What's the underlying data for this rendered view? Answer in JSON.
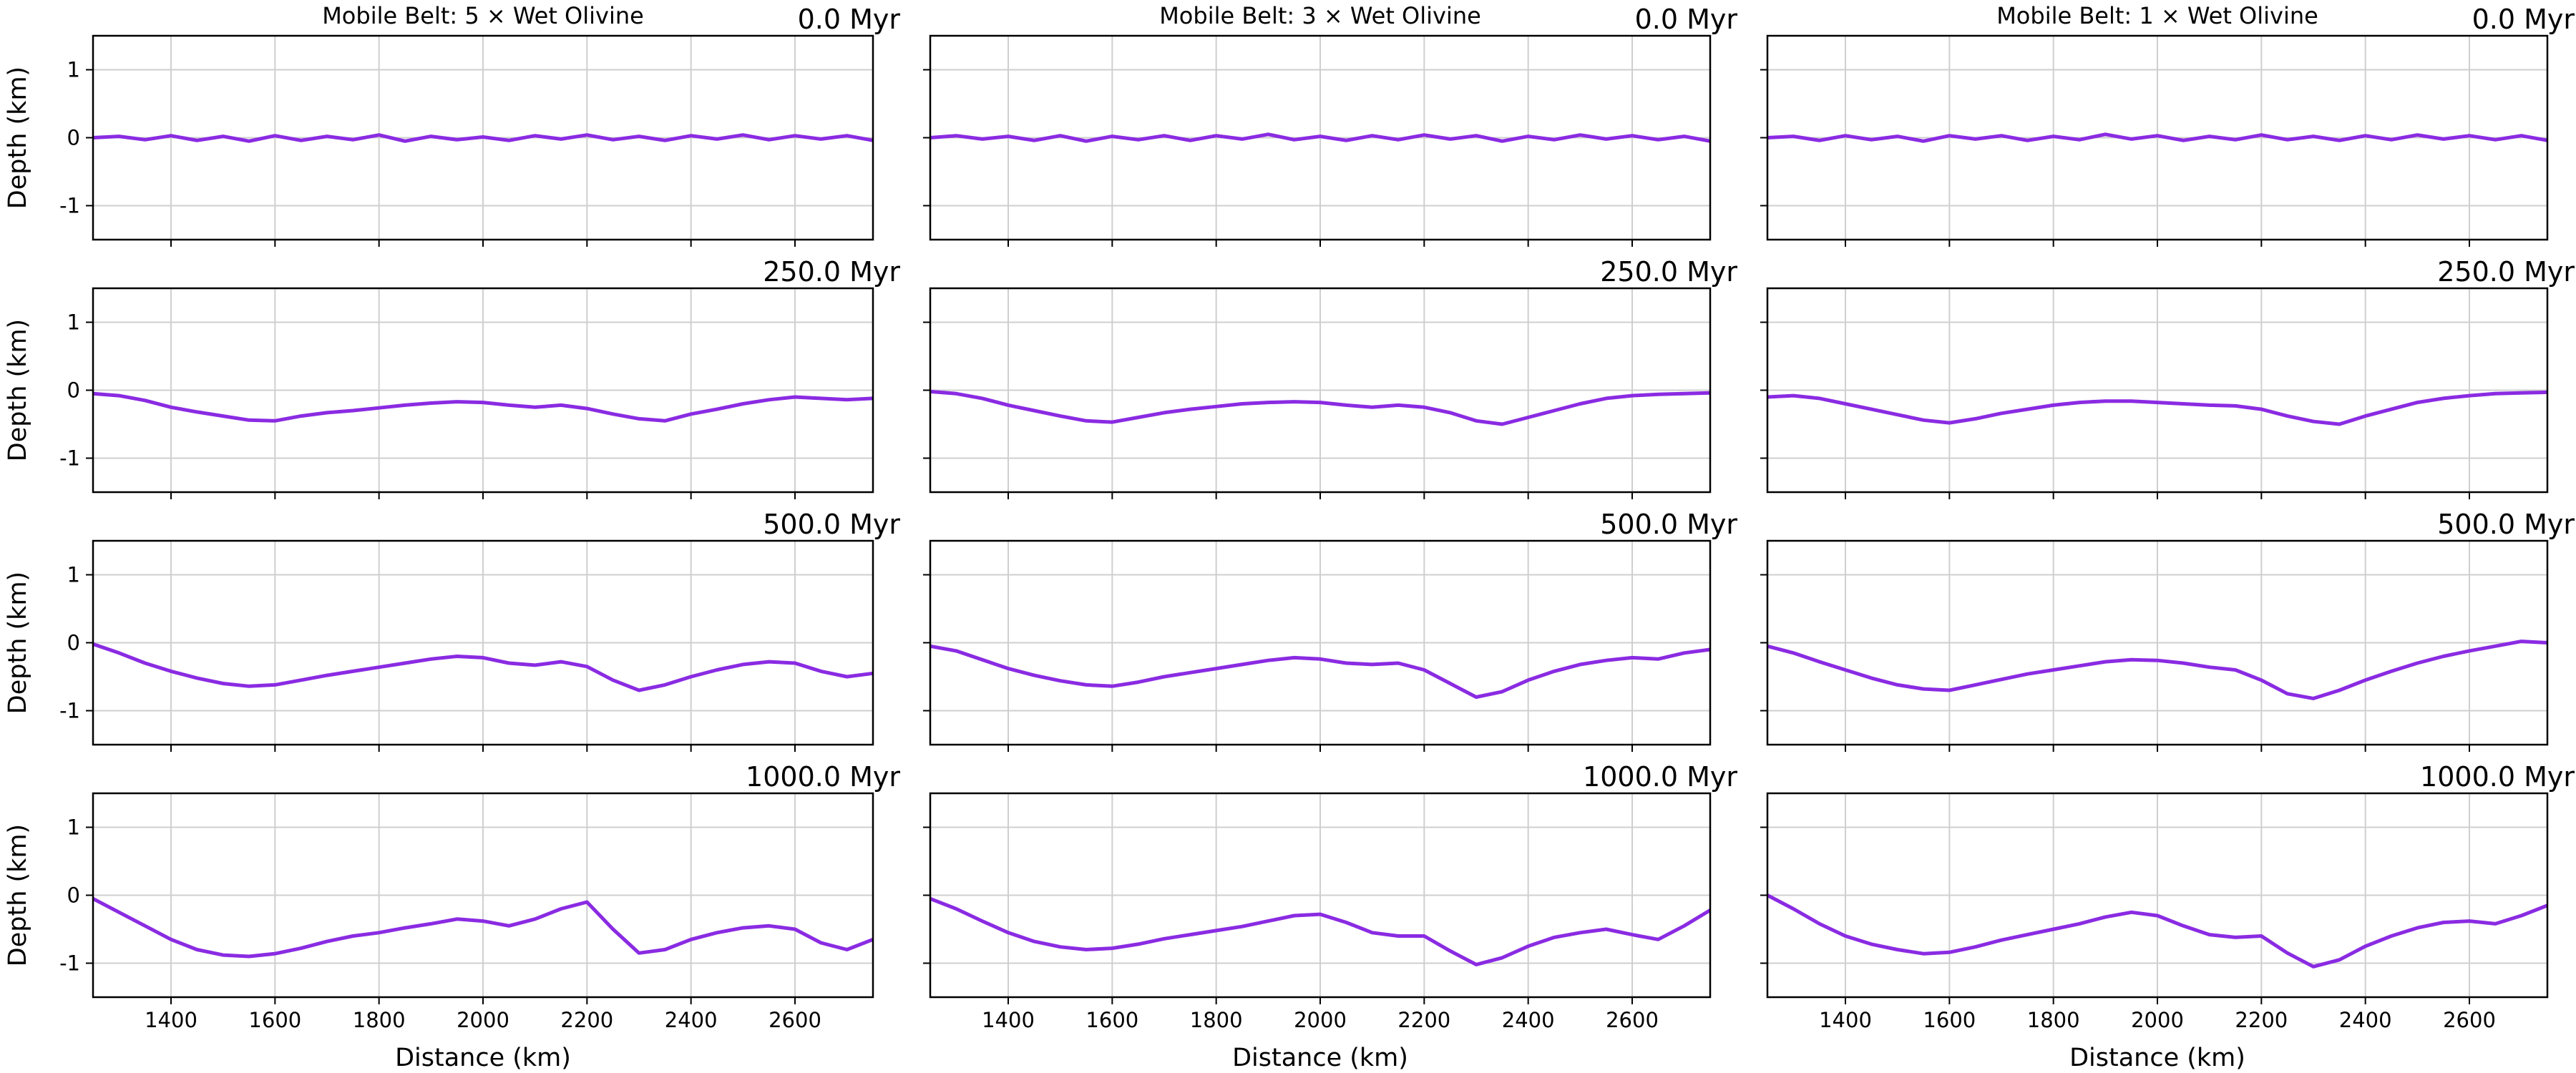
{
  "figure": {
    "x_axis_label": "Distance (km)",
    "y_axis_label": "Depth (km)",
    "x_ticks": [
      1400,
      1600,
      1800,
      2000,
      2200,
      2400,
      2600
    ],
    "y_ticks": [
      1,
      0,
      -1
    ],
    "xlim": [
      1250,
      2750
    ],
    "ylim": [
      -1.5,
      1.5
    ],
    "line_color": "#8a2be2",
    "grid": true,
    "columns": [
      {
        "title": "Mobile Belt: 5 × Wet Olivine"
      },
      {
        "title": "Mobile Belt: 3 × Wet Olivine"
      },
      {
        "title": "Mobile Belt: 1 × Wet Olivine"
      }
    ],
    "rows": [
      {
        "time_label": "0.0 Myr"
      },
      {
        "time_label": "250.0 Myr"
      },
      {
        "time_label": "500.0 Myr"
      },
      {
        "time_label": "1000.0 Myr"
      }
    ]
  },
  "chart_data": [
    {
      "type": "line",
      "title": "Mobile Belt: 5 × Wet Olivine",
      "annotation": "0.0 Myr",
      "xlabel": "",
      "ylabel": "Depth (km)",
      "xlim": [
        1250,
        2750
      ],
      "ylim": [
        -1.5,
        1.5
      ],
      "x": [
        1250,
        1300,
        1350,
        1400,
        1450,
        1500,
        1550,
        1600,
        1650,
        1700,
        1750,
        1800,
        1850,
        1900,
        1950,
        2000,
        2050,
        2100,
        2150,
        2200,
        2250,
        2300,
        2350,
        2400,
        2450,
        2500,
        2550,
        2600,
        2650,
        2700,
        2750
      ],
      "series": [
        {
          "values": [
            0,
            0.02,
            -0.03,
            0.03,
            -0.04,
            0.02,
            -0.05,
            0.03,
            -0.04,
            0.02,
            -0.03,
            0.04,
            -0.05,
            0.02,
            -0.03,
            0.01,
            -0.04,
            0.03,
            -0.02,
            0.04,
            -0.03,
            0.02,
            -0.04,
            0.03,
            -0.02,
            0.04,
            -0.03,
            0.03,
            -0.02,
            0.03,
            -0.04
          ]
        }
      ]
    },
    {
      "type": "line",
      "title": "Mobile Belt: 3 × Wet Olivine",
      "annotation": "0.0 Myr",
      "xlabel": "",
      "ylabel": "",
      "xlim": [
        1250,
        2750
      ],
      "ylim": [
        -1.5,
        1.5
      ],
      "x": [
        1250,
        1300,
        1350,
        1400,
        1450,
        1500,
        1550,
        1600,
        1650,
        1700,
        1750,
        1800,
        1850,
        1900,
        1950,
        2000,
        2050,
        2100,
        2150,
        2200,
        2250,
        2300,
        2350,
        2400,
        2450,
        2500,
        2550,
        2600,
        2650,
        2700,
        2750
      ],
      "series": [
        {
          "values": [
            0,
            0.03,
            -0.02,
            0.02,
            -0.04,
            0.03,
            -0.05,
            0.02,
            -0.03,
            0.03,
            -0.04,
            0.03,
            -0.02,
            0.05,
            -0.03,
            0.02,
            -0.04,
            0.03,
            -0.03,
            0.04,
            -0.02,
            0.03,
            -0.05,
            0.02,
            -0.03,
            0.04,
            -0.02,
            0.03,
            -0.03,
            0.02,
            -0.05
          ]
        }
      ]
    },
    {
      "type": "line",
      "title": "Mobile Belt: 1 × Wet Olivine",
      "annotation": "0.0 Myr",
      "xlabel": "",
      "ylabel": "",
      "xlim": [
        1250,
        2750
      ],
      "ylim": [
        -1.5,
        1.5
      ],
      "x": [
        1250,
        1300,
        1350,
        1400,
        1450,
        1500,
        1550,
        1600,
        1650,
        1700,
        1750,
        1800,
        1850,
        1900,
        1950,
        2000,
        2050,
        2100,
        2150,
        2200,
        2250,
        2300,
        2350,
        2400,
        2450,
        2500,
        2550,
        2600,
        2650,
        2700,
        2750
      ],
      "series": [
        {
          "values": [
            0,
            0.02,
            -0.04,
            0.03,
            -0.03,
            0.02,
            -0.05,
            0.03,
            -0.02,
            0.03,
            -0.04,
            0.02,
            -0.03,
            0.05,
            -0.02,
            0.03,
            -0.04,
            0.02,
            -0.03,
            0.04,
            -0.03,
            0.02,
            -0.04,
            0.03,
            -0.03,
            0.04,
            -0.02,
            0.03,
            -0.03,
            0.03,
            -0.04
          ]
        }
      ]
    },
    {
      "type": "line",
      "title": "",
      "annotation": "250.0 Myr",
      "xlabel": "",
      "ylabel": "Depth (km)",
      "xlim": [
        1250,
        2750
      ],
      "ylim": [
        -1.5,
        1.5
      ],
      "x": [
        1250,
        1300,
        1350,
        1400,
        1450,
        1500,
        1550,
        1600,
        1650,
        1700,
        1750,
        1800,
        1850,
        1900,
        1950,
        2000,
        2050,
        2100,
        2150,
        2200,
        2250,
        2300,
        2350,
        2400,
        2450,
        2500,
        2550,
        2600,
        2650,
        2700,
        2750
      ],
      "series": [
        {
          "values": [
            -0.05,
            -0.08,
            -0.15,
            -0.25,
            -0.32,
            -0.38,
            -0.44,
            -0.45,
            -0.38,
            -0.33,
            -0.3,
            -0.26,
            -0.22,
            -0.19,
            -0.17,
            -0.18,
            -0.22,
            -0.25,
            -0.22,
            -0.27,
            -0.35,
            -0.42,
            -0.45,
            -0.35,
            -0.28,
            -0.2,
            -0.14,
            -0.1,
            -0.12,
            -0.14,
            -0.12
          ]
        }
      ]
    },
    {
      "type": "line",
      "title": "",
      "annotation": "250.0 Myr",
      "xlabel": "",
      "ylabel": "",
      "xlim": [
        1250,
        2750
      ],
      "ylim": [
        -1.5,
        1.5
      ],
      "x": [
        1250,
        1300,
        1350,
        1400,
        1450,
        1500,
        1550,
        1600,
        1650,
        1700,
        1750,
        1800,
        1850,
        1900,
        1950,
        2000,
        2050,
        2100,
        2150,
        2200,
        2250,
        2300,
        2350,
        2400,
        2450,
        2500,
        2550,
        2600,
        2650,
        2700,
        2750
      ],
      "series": [
        {
          "values": [
            -0.02,
            -0.05,
            -0.12,
            -0.22,
            -0.3,
            -0.38,
            -0.45,
            -0.47,
            -0.4,
            -0.33,
            -0.28,
            -0.24,
            -0.2,
            -0.18,
            -0.17,
            -0.18,
            -0.22,
            -0.25,
            -0.22,
            -0.25,
            -0.33,
            -0.45,
            -0.5,
            -0.4,
            -0.3,
            -0.2,
            -0.12,
            -0.08,
            -0.06,
            -0.05,
            -0.04
          ]
        }
      ]
    },
    {
      "type": "line",
      "title": "",
      "annotation": "250.0 Myr",
      "xlabel": "",
      "ylabel": "",
      "xlim": [
        1250,
        2750
      ],
      "ylim": [
        -1.5,
        1.5
      ],
      "x": [
        1250,
        1300,
        1350,
        1400,
        1450,
        1500,
        1550,
        1600,
        1650,
        1700,
        1750,
        1800,
        1850,
        1900,
        1950,
        2000,
        2050,
        2100,
        2150,
        2200,
        2250,
        2300,
        2350,
        2400,
        2450,
        2500,
        2550,
        2600,
        2650,
        2700,
        2750
      ],
      "series": [
        {
          "values": [
            -0.1,
            -0.08,
            -0.12,
            -0.2,
            -0.28,
            -0.36,
            -0.44,
            -0.48,
            -0.42,
            -0.34,
            -0.28,
            -0.22,
            -0.18,
            -0.16,
            -0.16,
            -0.18,
            -0.2,
            -0.22,
            -0.23,
            -0.28,
            -0.38,
            -0.46,
            -0.5,
            -0.38,
            -0.28,
            -0.18,
            -0.12,
            -0.08,
            -0.05,
            -0.04,
            -0.03
          ]
        }
      ]
    },
    {
      "type": "line",
      "title": "",
      "annotation": "500.0 Myr",
      "xlabel": "",
      "ylabel": "Depth (km)",
      "xlim": [
        1250,
        2750
      ],
      "ylim": [
        -1.5,
        1.5
      ],
      "x": [
        1250,
        1300,
        1350,
        1400,
        1450,
        1500,
        1550,
        1600,
        1650,
        1700,
        1750,
        1800,
        1850,
        1900,
        1950,
        2000,
        2050,
        2100,
        2150,
        2200,
        2250,
        2300,
        2350,
        2400,
        2450,
        2500,
        2550,
        2600,
        2650,
        2700,
        2750
      ],
      "series": [
        {
          "values": [
            -0.02,
            -0.15,
            -0.3,
            -0.42,
            -0.52,
            -0.6,
            -0.64,
            -0.62,
            -0.55,
            -0.48,
            -0.42,
            -0.36,
            -0.3,
            -0.24,
            -0.2,
            -0.22,
            -0.3,
            -0.33,
            -0.28,
            -0.35,
            -0.55,
            -0.7,
            -0.62,
            -0.5,
            -0.4,
            -0.32,
            -0.28,
            -0.3,
            -0.42,
            -0.5,
            -0.45
          ]
        }
      ]
    },
    {
      "type": "line",
      "title": "",
      "annotation": "500.0 Myr",
      "xlabel": "",
      "ylabel": "",
      "xlim": [
        1250,
        2750
      ],
      "ylim": [
        -1.5,
        1.5
      ],
      "x": [
        1250,
        1300,
        1350,
        1400,
        1450,
        1500,
        1550,
        1600,
        1650,
        1700,
        1750,
        1800,
        1850,
        1900,
        1950,
        2000,
        2050,
        2100,
        2150,
        2200,
        2250,
        2300,
        2350,
        2400,
        2450,
        2500,
        2550,
        2600,
        2650,
        2700,
        2750
      ],
      "series": [
        {
          "values": [
            -0.05,
            -0.12,
            -0.25,
            -0.38,
            -0.48,
            -0.56,
            -0.62,
            -0.64,
            -0.58,
            -0.5,
            -0.44,
            -0.38,
            -0.32,
            -0.26,
            -0.22,
            -0.24,
            -0.3,
            -0.32,
            -0.3,
            -0.4,
            -0.6,
            -0.8,
            -0.72,
            -0.55,
            -0.42,
            -0.32,
            -0.26,
            -0.22,
            -0.24,
            -0.15,
            -0.1
          ]
        }
      ]
    },
    {
      "type": "line",
      "title": "",
      "annotation": "500.0 Myr",
      "xlabel": "",
      "ylabel": "",
      "xlim": [
        1250,
        2750
      ],
      "ylim": [
        -1.5,
        1.5
      ],
      "x": [
        1250,
        1300,
        1350,
        1400,
        1450,
        1500,
        1550,
        1600,
        1650,
        1700,
        1750,
        1800,
        1850,
        1900,
        1950,
        2000,
        2050,
        2100,
        2150,
        2200,
        2250,
        2300,
        2350,
        2400,
        2450,
        2500,
        2550,
        2600,
        2650,
        2700,
        2750
      ],
      "series": [
        {
          "values": [
            -0.05,
            -0.15,
            -0.28,
            -0.4,
            -0.52,
            -0.62,
            -0.68,
            -0.7,
            -0.62,
            -0.54,
            -0.46,
            -0.4,
            -0.34,
            -0.28,
            -0.25,
            -0.26,
            -0.3,
            -0.36,
            -0.4,
            -0.55,
            -0.75,
            -0.82,
            -0.7,
            -0.55,
            -0.42,
            -0.3,
            -0.2,
            -0.12,
            -0.05,
            0.02,
            0.0
          ]
        }
      ]
    },
    {
      "type": "line",
      "title": "",
      "annotation": "1000.0 Myr",
      "xlabel": "Distance (km)",
      "ylabel": "Depth (km)",
      "xlim": [
        1250,
        2750
      ],
      "ylim": [
        -1.5,
        1.5
      ],
      "x": [
        1250,
        1300,
        1350,
        1400,
        1450,
        1500,
        1550,
        1600,
        1650,
        1700,
        1750,
        1800,
        1850,
        1900,
        1950,
        2000,
        2050,
        2100,
        2150,
        2200,
        2250,
        2300,
        2350,
        2400,
        2450,
        2500,
        2550,
        2600,
        2650,
        2700,
        2750
      ],
      "series": [
        {
          "values": [
            -0.05,
            -0.25,
            -0.45,
            -0.65,
            -0.8,
            -0.88,
            -0.9,
            -0.86,
            -0.78,
            -0.68,
            -0.6,
            -0.55,
            -0.48,
            -0.42,
            -0.35,
            -0.38,
            -0.45,
            -0.35,
            -0.2,
            -0.1,
            -0.5,
            -0.85,
            -0.8,
            -0.65,
            -0.55,
            -0.48,
            -0.45,
            -0.5,
            -0.7,
            -0.8,
            -0.65
          ]
        }
      ]
    },
    {
      "type": "line",
      "title": "",
      "annotation": "1000.0 Myr",
      "xlabel": "Distance (km)",
      "ylabel": "",
      "xlim": [
        1250,
        2750
      ],
      "ylim": [
        -1.5,
        1.5
      ],
      "x": [
        1250,
        1300,
        1350,
        1400,
        1450,
        1500,
        1550,
        1600,
        1650,
        1700,
        1750,
        1800,
        1850,
        1900,
        1950,
        2000,
        2050,
        2100,
        2150,
        2200,
        2250,
        2300,
        2350,
        2400,
        2450,
        2500,
        2550,
        2600,
        2650,
        2700,
        2750
      ],
      "series": [
        {
          "values": [
            -0.05,
            -0.2,
            -0.38,
            -0.55,
            -0.68,
            -0.76,
            -0.8,
            -0.78,
            -0.72,
            -0.64,
            -0.58,
            -0.52,
            -0.46,
            -0.38,
            -0.3,
            -0.28,
            -0.4,
            -0.55,
            -0.6,
            -0.6,
            -0.82,
            -1.02,
            -0.92,
            -0.75,
            -0.62,
            -0.55,
            -0.5,
            -0.58,
            -0.65,
            -0.45,
            -0.22
          ]
        }
      ]
    },
    {
      "type": "line",
      "title": "",
      "annotation": "1000.0 Myr",
      "xlabel": "Distance (km)",
      "ylabel": "",
      "xlim": [
        1250,
        2750
      ],
      "ylim": [
        -1.5,
        1.5
      ],
      "x": [
        1250,
        1300,
        1350,
        1400,
        1450,
        1500,
        1550,
        1600,
        1650,
        1700,
        1750,
        1800,
        1850,
        1900,
        1950,
        2000,
        2050,
        2100,
        2150,
        2200,
        2250,
        2300,
        2350,
        2400,
        2450,
        2500,
        2550,
        2600,
        2650,
        2700,
        2750
      ],
      "series": [
        {
          "values": [
            0.0,
            -0.2,
            -0.42,
            -0.6,
            -0.72,
            -0.8,
            -0.86,
            -0.84,
            -0.76,
            -0.66,
            -0.58,
            -0.5,
            -0.42,
            -0.32,
            -0.25,
            -0.3,
            -0.45,
            -0.58,
            -0.62,
            -0.6,
            -0.85,
            -1.05,
            -0.95,
            -0.75,
            -0.6,
            -0.48,
            -0.4,
            -0.38,
            -0.42,
            -0.3,
            -0.15
          ]
        }
      ]
    }
  ]
}
